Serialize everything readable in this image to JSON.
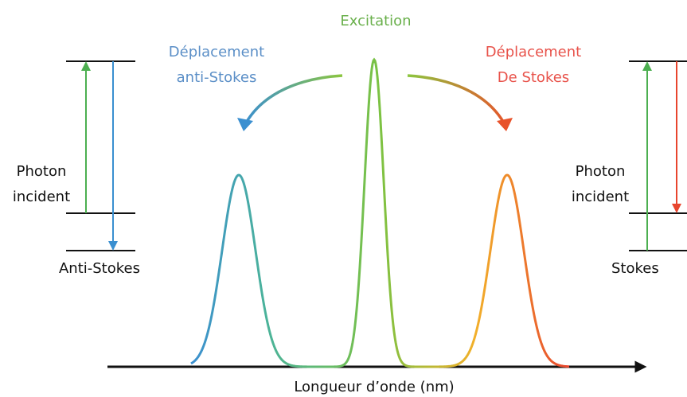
{
  "title": "Excitation",
  "anti_stokes_shift": {
    "line1": "Déplacement",
    "line2": "anti-Stokes"
  },
  "stokes_shift": {
    "line1": "Déplacement",
    "line2": "De Stokes"
  },
  "left_diagram": {
    "label1": "Photon",
    "label2": "incident",
    "level": "Anti-Stokes"
  },
  "right_diagram": {
    "label1": "Photon",
    "label2": "incident",
    "level": "Stokes"
  },
  "x_axis_label": "Longueur d’onde (nm)"
}
